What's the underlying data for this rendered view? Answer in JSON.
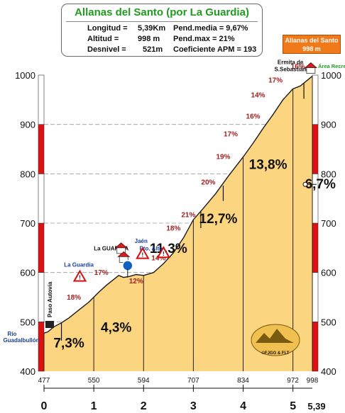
{
  "header": {
    "title": "Allanas del Santo (por La Guardia)",
    "longitud_label": "Longitud =",
    "longitud_value": "5,39Km",
    "altitud_label": "Altitud =",
    "altitud_value": "998 m",
    "desnivel_label": "Desnivel =",
    "desnivel_value": "521m",
    "pend_media": "Pend.media = 9,67%",
    "pend_max": "Pend.max = 21%",
    "coef_apm": "Coeficiente APM = 193"
  },
  "peak_box": {
    "line1": "Allanas del Santo",
    "line2": "998 m"
  },
  "colors": {
    "fill": "#fcd580",
    "stroke": "#1a1a1a",
    "red_band": "#dd1111",
    "grade_text": "#a02020",
    "place_text": "#1a3f9a"
  },
  "chart_data": {
    "type": "area",
    "xlabel": "",
    "ylabel": "",
    "xlim": [
      0,
      5.39
    ],
    "ylim": [
      400,
      1000
    ],
    "y_ticks": [
      400,
      500,
      600,
      700,
      800,
      900,
      1000
    ],
    "x_ticks_km": [
      "0",
      "1",
      "2",
      "3",
      "4",
      "5"
    ],
    "x_end_label": "5,39",
    "profile": [
      {
        "km": 0.0,
        "alt": 477
      },
      {
        "km": 0.08,
        "alt": 480
      },
      {
        "km": 0.2,
        "alt": 490
      },
      {
        "km": 0.35,
        "alt": 498
      },
      {
        "km": 0.5,
        "alt": 508
      },
      {
        "km": 0.7,
        "alt": 524
      },
      {
        "km": 0.9,
        "alt": 540
      },
      {
        "km": 1.0,
        "alt": 550
      },
      {
        "km": 1.1,
        "alt": 560
      },
      {
        "km": 1.25,
        "alt": 574
      },
      {
        "km": 1.4,
        "alt": 586
      },
      {
        "km": 1.5,
        "alt": 594
      },
      {
        "km": 1.6,
        "alt": 590
      },
      {
        "km": 1.72,
        "alt": 592
      },
      {
        "km": 1.85,
        "alt": 596
      },
      {
        "km": 2.0,
        "alt": 594
      },
      {
        "km": 2.2,
        "alt": 600
      },
      {
        "km": 2.4,
        "alt": 618
      },
      {
        "km": 2.6,
        "alt": 640
      },
      {
        "km": 2.8,
        "alt": 670
      },
      {
        "km": 3.0,
        "alt": 707
      },
      {
        "km": 3.2,
        "alt": 730
      },
      {
        "km": 3.45,
        "alt": 760
      },
      {
        "km": 3.7,
        "alt": 795
      },
      {
        "km": 4.0,
        "alt": 834
      },
      {
        "km": 4.2,
        "alt": 862
      },
      {
        "km": 4.4,
        "alt": 892
      },
      {
        "km": 4.6,
        "alt": 920
      },
      {
        "km": 4.8,
        "alt": 950
      },
      {
        "km": 5.0,
        "alt": 972
      },
      {
        "km": 5.15,
        "alt": 978
      },
      {
        "km": 5.39,
        "alt": 998
      }
    ],
    "segment_markers": [
      {
        "km": 0.0,
        "alt": 477,
        "label": "477"
      },
      {
        "km": 1.0,
        "alt": 550,
        "label": "550"
      },
      {
        "km": 2.0,
        "alt": 594,
        "label": "594"
      },
      {
        "km": 3.0,
        "alt": 707,
        "label": "707"
      },
      {
        "km": 4.0,
        "alt": 834,
        "label": "834"
      },
      {
        "km": 5.0,
        "alt": 972,
        "label": "972"
      },
      {
        "km": 5.39,
        "alt": 998,
        "label": "998"
      }
    ],
    "km_averages": [
      {
        "km_center": 0.5,
        "label": "7,3%"
      },
      {
        "km_center": 1.5,
        "label": "4,3%"
      },
      {
        "km_center": 2.5,
        "label": "11,3%"
      },
      {
        "km_center": 3.5,
        "label": "12,7%"
      },
      {
        "km_center": 4.5,
        "label": "13,8%"
      },
      {
        "km_center": 5.55,
        "label": "6,7%"
      }
    ],
    "grade_labels": [
      {
        "km": 0.6,
        "alt": 545,
        "label": "18%"
      },
      {
        "km": 1.15,
        "alt": 595,
        "label": "17%"
      },
      {
        "km": 1.85,
        "alt": 578,
        "label": "12%"
      },
      {
        "km": 2.3,
        "alt": 625,
        "label": "14%"
      },
      {
        "km": 2.6,
        "alt": 685,
        "label": "18%"
      },
      {
        "km": 2.9,
        "alt": 712,
        "label": "21%"
      },
      {
        "km": 3.3,
        "alt": 778,
        "label": "20%"
      },
      {
        "km": 3.6,
        "alt": 830,
        "label": "19%"
      },
      {
        "km": 3.75,
        "alt": 876,
        "label": "17%"
      },
      {
        "km": 4.2,
        "alt": 912,
        "label": "16%"
      },
      {
        "km": 4.3,
        "alt": 955,
        "label": "14%"
      },
      {
        "km": 4.65,
        "alt": 985,
        "label": "17%"
      },
      {
        "km": 5.1,
        "alt": 1013,
        "label": "16%"
      }
    ],
    "places": [
      {
        "km": 0.7,
        "alt": 612,
        "label": "La Guardia"
      },
      {
        "km": 1.35,
        "alt": 645,
        "label": "La GUARDIA"
      },
      {
        "km": 1.95,
        "alt": 660,
        "label": "Jaén"
      },
      {
        "km": 2.15,
        "alt": 645,
        "label": "Pto. Alto"
      },
      {
        "km": 4.95,
        "alt": 1022,
        "label": "Ermita de"
      },
      {
        "km": 4.95,
        "alt": 1008,
        "label": "S.Sebastián"
      }
    ],
    "left_labels": [
      "Río",
      "Guadalbullón"
    ],
    "vertical_label": "Paso Autovia",
    "right_top_label": "Área Recre",
    "logo_text": "©FJGG & FLT"
  }
}
